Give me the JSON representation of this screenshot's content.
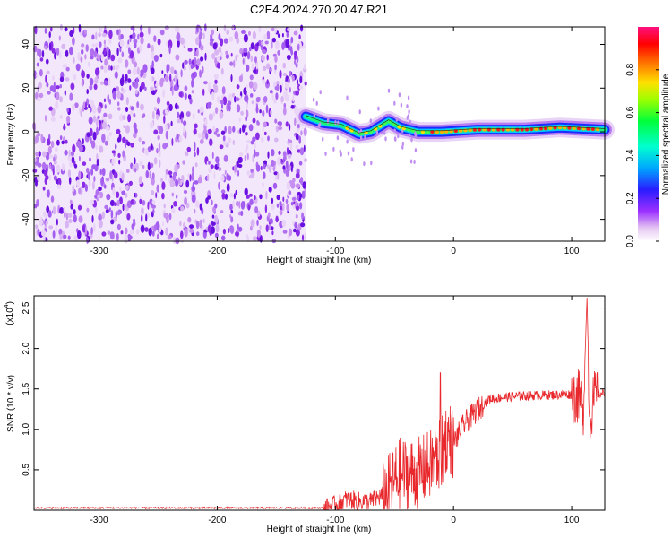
{
  "title": "C2E4.2024.270.20.47.R21",
  "chart_data": [
    {
      "type": "heatmap",
      "title": "",
      "xlabel": "Height of straight line (km)",
      "ylabel": "Frequency (Hz)",
      "xlim": [
        -355,
        128
      ],
      "ylim": [
        -50,
        48
      ],
      "xticks": [
        -300,
        -200,
        -100,
        0,
        100
      ],
      "yticks": [
        -40,
        -20,
        0,
        20,
        40
      ],
      "colorbar": {
        "label": "Normalized spectral amplitude",
        "ticks": [
          0.0,
          0.2,
          0.4,
          0.6,
          0.8
        ],
        "range": [
          0,
          1
        ],
        "colormap": "rainbow (violet-blue-cyan-green-yellow-orange-red-magenta)"
      },
      "description_regions": {
        "noise_region_x": [
          -355,
          -125
        ],
        "signal_centerline": [
          {
            "x": -125,
            "freq": 7
          },
          {
            "x": -110,
            "freq": 4
          },
          {
            "x": -95,
            "freq": 3
          },
          {
            "x": -80,
            "freq": -1
          },
          {
            "x": -70,
            "freq": 0
          },
          {
            "x": -55,
            "freq": 5
          },
          {
            "x": -45,
            "freq": 2
          },
          {
            "x": -30,
            "freq": 0
          },
          {
            "x": -10,
            "freq": 0
          },
          {
            "x": 20,
            "freq": 1
          },
          {
            "x": 60,
            "freq": 1
          },
          {
            "x": 90,
            "freq": 2
          },
          {
            "x": 128,
            "freq": 1
          }
        ]
      }
    },
    {
      "type": "line",
      "title": "",
      "xlabel": "Height of straight line (km)",
      "ylabel": "SNR (10 * v/v)",
      "yscale_label": "(x10",
      "yscale_exp": "4",
      "xlim": [
        -355,
        128
      ],
      "ylim": [
        0,
        2.65
      ],
      "xticks": [
        -300,
        -200,
        -100,
        0,
        100
      ],
      "yticks": [
        0.5,
        1.0,
        1.5,
        2.0,
        2.5
      ],
      "ytick_labels": [
        "0.5",
        "1.0",
        "1.5",
        "2.0",
        "2.5"
      ],
      "color": "#e8282c",
      "series": [
        {
          "x": [
            -355,
            -110,
            -100,
            -90,
            -80,
            -70,
            -60,
            -50,
            -45,
            -40,
            -30,
            -20,
            -10,
            -5,
            0,
            10,
            20,
            30,
            40,
            60,
            80,
            100,
            105,
            110,
            113,
            115,
            120,
            128
          ],
          "y": [
            0.03,
            0.03,
            0.08,
            0.15,
            0.12,
            0.12,
            0.2,
            0.4,
            0.5,
            0.5,
            0.5,
            0.6,
            0.75,
            1.0,
            0.85,
            1.1,
            1.25,
            1.38,
            1.4,
            1.42,
            1.43,
            1.44,
            1.45,
            1.3,
            2.65,
            1.2,
            1.45,
            1.45
          ]
        }
      ]
    }
  ]
}
